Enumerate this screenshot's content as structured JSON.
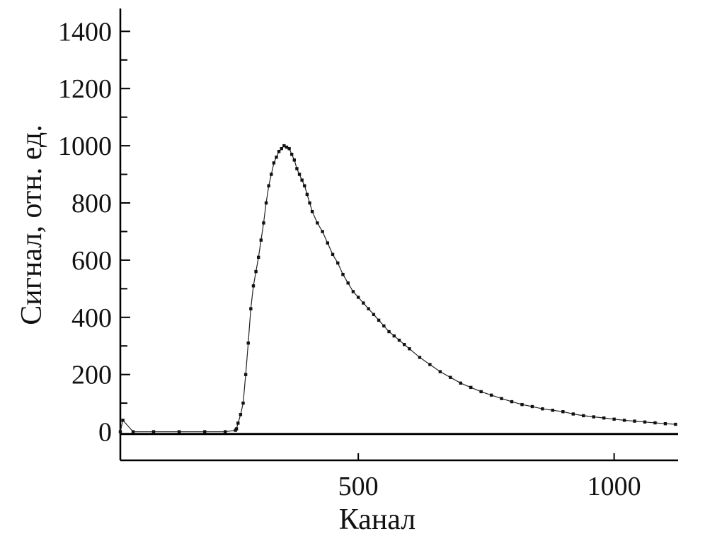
{
  "chart_data": {
    "type": "scatter",
    "title": "",
    "xlabel": "Канал",
    "ylabel": "Сигнал, отн. ед.",
    "xlim": [
      35,
      1125
    ],
    "ylim": [
      -100,
      1480
    ],
    "xticks": [
      500,
      1000
    ],
    "xtick_labels": [
      "500",
      "1000"
    ],
    "yticks": [
      0,
      200,
      400,
      600,
      800,
      1000,
      1200,
      1400
    ],
    "ytick_labels": [
      "0",
      "200",
      "400",
      "600",
      "800",
      "1000",
      "1200",
      "1400"
    ],
    "y_minor_step": 100,
    "grid": false,
    "legend": "none",
    "colors": {
      "marker": "#111111",
      "line": "#222222",
      "axis": "#000000"
    },
    "series": [
      {
        "style": "dots connected by thin line",
        "x": [
          35,
          40,
          60,
          100,
          150,
          200,
          240,
          260,
          262,
          265,
          270,
          275,
          280,
          285,
          290,
          295,
          300,
          305,
          310,
          315,
          320,
          325,
          330,
          335,
          340,
          345,
          350,
          355,
          360,
          365,
          370,
          375,
          380,
          385,
          390,
          395,
          400,
          405,
          410,
          420,
          430,
          440,
          450,
          460,
          470,
          480,
          490,
          500,
          510,
          520,
          530,
          540,
          550,
          560,
          570,
          580,
          590,
          600,
          620,
          640,
          660,
          680,
          700,
          720,
          740,
          760,
          780,
          800,
          820,
          840,
          860,
          880,
          900,
          920,
          940,
          960,
          980,
          1000,
          1020,
          1040,
          1060,
          1080,
          1100,
          1120
        ],
        "y": [
          0,
          40,
          0,
          0,
          0,
          0,
          0,
          5,
          10,
          30,
          60,
          100,
          200,
          310,
          430,
          510,
          560,
          610,
          670,
          730,
          800,
          860,
          900,
          940,
          960,
          980,
          990,
          1000,
          995,
          990,
          970,
          950,
          920,
          900,
          880,
          860,
          830,
          800,
          770,
          730,
          700,
          660,
          620,
          590,
          550,
          520,
          490,
          470,
          450,
          430,
          410,
          390,
          370,
          350,
          335,
          320,
          305,
          290,
          260,
          235,
          210,
          190,
          170,
          155,
          140,
          128,
          116,
          105,
          95,
          88,
          80,
          75,
          70,
          62,
          56,
          52,
          48,
          44,
          40,
          37,
          34,
          31,
          28,
          26
        ]
      },
      {
        "style": "baseline",
        "x": [
          35,
          1125
        ],
        "y": [
          -8,
          -8
        ]
      }
    ]
  }
}
